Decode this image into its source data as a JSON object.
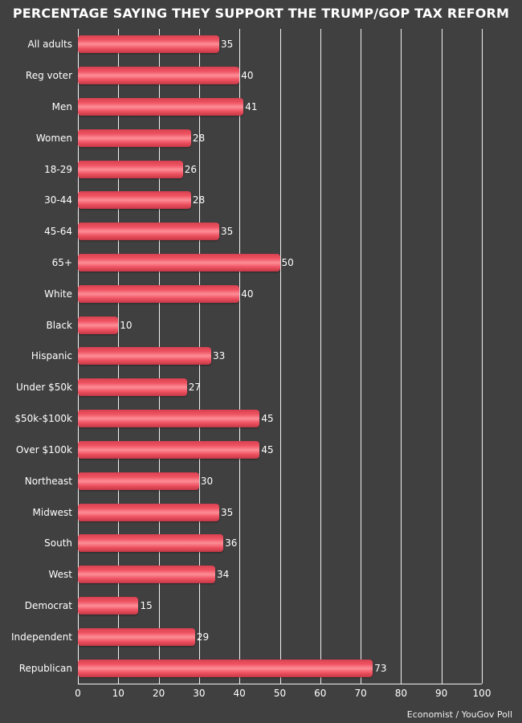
{
  "title": "PERCENTAGE SAYING THEY SUPPORT THE TRUMP/GOP TAX REFORM",
  "footer": "Economist / YouGov Poll",
  "colors": {
    "background": "#404040",
    "text": "#ffffff",
    "grid": "#f2f2f2",
    "bar_light": "#fd8e97",
    "bar_main": "#ef5362",
    "bar_dark": "#d84150",
    "bar_edge": "#c53745"
  },
  "chart_data": {
    "type": "bar",
    "orientation": "horizontal",
    "title": "PERCENTAGE SAYING THEY SUPPORT THE TRUMP/GOP TAX REFORM",
    "categories": [
      "All adults",
      "Reg voter",
      "Men",
      "Women",
      "18-29",
      "30-44",
      "45-64",
      "65+",
      "White",
      "Black",
      "Hispanic",
      "Under $50k",
      "$50k-$100k",
      "Over $100k",
      "Northeast",
      "Midwest",
      "South",
      "West",
      "Democrat",
      "Independent",
      "Republican"
    ],
    "values": [
      35,
      40,
      41,
      28,
      26,
      28,
      35,
      50,
      40,
      10,
      33,
      27,
      45,
      45,
      30,
      35,
      36,
      34,
      15,
      29,
      73
    ],
    "xlim": [
      0,
      100
    ],
    "xticks": [
      0,
      10,
      20,
      30,
      40,
      50,
      60,
      70,
      80,
      90,
      100
    ],
    "grid": true,
    "legend": false,
    "value_labels": true,
    "source": "Economist / YouGov Poll"
  }
}
